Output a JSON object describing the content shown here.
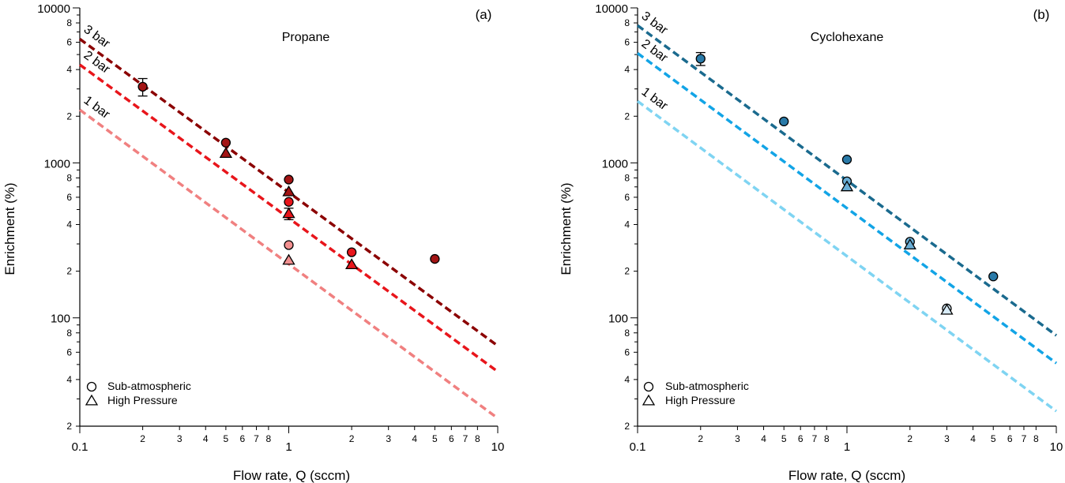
{
  "chart_data": [
    {
      "type": "scatter",
      "panel_label": "(a)",
      "title": "Propane",
      "xlabel": "Flow rate, Q (sccm)",
      "ylabel": "Enrichment (%)",
      "x_scale": "log",
      "y_scale": "log",
      "xlim": [
        0.1,
        10
      ],
      "ylim": [
        20,
        10000
      ],
      "x_major_ticks": [
        {
          "v": 0.1,
          "t": "0.1"
        },
        {
          "v": 1,
          "t": "1"
        },
        {
          "v": 10,
          "t": "10"
        }
      ],
      "x_minor_ticks": [
        2,
        3,
        4,
        5,
        6,
        7,
        8
      ],
      "y_major_ticks": [
        {
          "v": 100,
          "t": "100"
        },
        {
          "v": 1000,
          "t": "1000"
        },
        {
          "v": 10000,
          "t": "10000"
        }
      ],
      "y_minor_ticks": [
        2,
        4,
        6,
        8
      ],
      "fit_lines": [
        {
          "name": "3 bar",
          "color": "#8b0000",
          "x": [
            0.1,
            10
          ],
          "y": [
            6300,
            66
          ]
        },
        {
          "name": "2 bar",
          "color": "#e8151b",
          "x": [
            0.1,
            10
          ],
          "y": [
            4300,
            45
          ]
        },
        {
          "name": "1 bar",
          "color": "#f08080",
          "x": [
            0.1,
            10
          ],
          "y": [
            2200,
            22.5
          ]
        }
      ],
      "series": [
        {
          "marker": "circle",
          "points": [
            {
              "x": 0.2,
              "y": 3100,
              "color": "#a31515",
              "err": 400
            },
            {
              "x": 0.5,
              "y": 1350,
              "color": "#a31515"
            },
            {
              "x": 1,
              "y": 780,
              "color": "#a31515"
            },
            {
              "x": 1,
              "y": 560,
              "color": "#e8151b"
            },
            {
              "x": 1,
              "y": 295,
              "color": "#f29090"
            },
            {
              "x": 2,
              "y": 265,
              "color": "#e8151b"
            },
            {
              "x": 5,
              "y": 240,
              "color": "#a31515"
            }
          ]
        },
        {
          "marker": "triangle",
          "points": [
            {
              "x": 0.5,
              "y": 1150,
              "color": "#a31515"
            },
            {
              "x": 1,
              "y": 650,
              "color": "#a31515"
            },
            {
              "x": 1,
              "y": 470,
              "color": "#e8151b",
              "err": 40
            },
            {
              "x": 1,
              "y": 235,
              "color": "#f29090"
            },
            {
              "x": 2,
              "y": 220,
              "color": "#e8151b"
            }
          ]
        }
      ],
      "legend": [
        {
          "marker": "circle",
          "label": "Sub-atmospheric"
        },
        {
          "marker": "triangle",
          "label": "High Pressure"
        }
      ],
      "legend_position": "bottom-left"
    },
    {
      "type": "scatter",
      "panel_label": "(b)",
      "title": "Cyclohexane",
      "xlabel": "Flow rate, Q (sccm)",
      "ylabel": "Enrichment (%)",
      "x_scale": "log",
      "y_scale": "log",
      "xlim": [
        0.1,
        10
      ],
      "ylim": [
        20,
        10000
      ],
      "x_major_ticks": [
        {
          "v": 0.1,
          "t": "0.1"
        },
        {
          "v": 1,
          "t": "1"
        },
        {
          "v": 10,
          "t": "10"
        }
      ],
      "x_minor_ticks": [
        2,
        3,
        4,
        5,
        6,
        7,
        8
      ],
      "y_major_ticks": [
        {
          "v": 100,
          "t": "100"
        },
        {
          "v": 1000,
          "t": "1000"
        },
        {
          "v": 10000,
          "t": "10000"
        }
      ],
      "y_minor_ticks": [
        2,
        4,
        6,
        8
      ],
      "fit_lines": [
        {
          "name": "3 bar",
          "color": "#1a6a8e",
          "x": [
            0.1,
            10
          ],
          "y": [
            7700,
            77
          ]
        },
        {
          "name": "2 bar",
          "color": "#12a4e6",
          "x": [
            0.1,
            10
          ],
          "y": [
            5100,
            51
          ]
        },
        {
          "name": "1 bar",
          "color": "#7fd4f2",
          "x": [
            0.1,
            10
          ],
          "y": [
            2500,
            25
          ]
        }
      ],
      "series": [
        {
          "marker": "circle",
          "points": [
            {
              "x": 0.2,
              "y": 4700,
              "color": "#2a7aa8",
              "err": 450
            },
            {
              "x": 0.5,
              "y": 1850,
              "color": "#2a7aa8"
            },
            {
              "x": 1,
              "y": 1050,
              "color": "#2a7aa8"
            },
            {
              "x": 1,
              "y": 760,
              "color": "#6aaed6"
            },
            {
              "x": 2,
              "y": 310,
              "color": "#6aaed6"
            },
            {
              "x": 3,
              "y": 115,
              "color": "#d8ecf8"
            },
            {
              "x": 5,
              "y": 185,
              "color": "#2a7aa8"
            }
          ]
        },
        {
          "marker": "triangle",
          "points": [
            {
              "x": 1,
              "y": 700,
              "color": "#6aaed6"
            },
            {
              "x": 2,
              "y": 295,
              "color": "#6aaed6"
            },
            {
              "x": 3,
              "y": 112,
              "color": "#d8ecf8"
            }
          ]
        }
      ],
      "legend": [
        {
          "marker": "circle",
          "label": "Sub-atmospheric"
        },
        {
          "marker": "triangle",
          "label": "High Pressure"
        }
      ],
      "legend_position": "bottom-left"
    }
  ]
}
